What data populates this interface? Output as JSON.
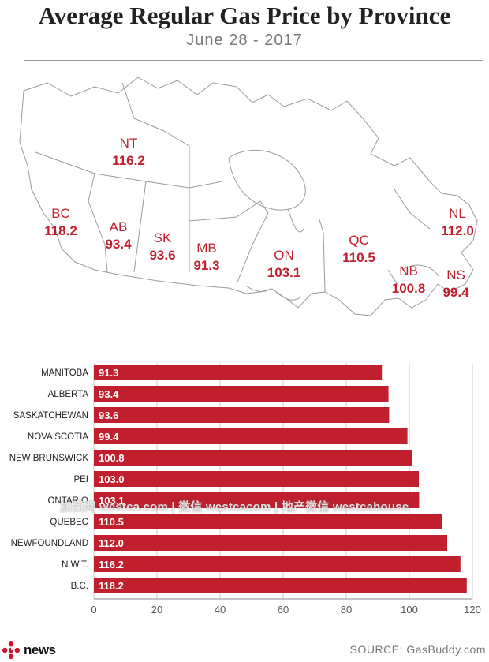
{
  "title": "Average Regular Gas Price by Province",
  "subtitle": "June 28 - 2017",
  "colors": {
    "accent": "#c0202e",
    "border": "#999999",
    "text": "#222222"
  },
  "map": {
    "labels": [
      {
        "abbr": "NT",
        "price": "116.2"
      },
      {
        "abbr": "BC",
        "price": "118.2"
      },
      {
        "abbr": "AB",
        "price": "93.4"
      },
      {
        "abbr": "SK",
        "price": "93.6"
      },
      {
        "abbr": "MB",
        "price": "91.3"
      },
      {
        "abbr": "ON",
        "price": "103.1"
      },
      {
        "abbr": "QC",
        "price": "110.5"
      },
      {
        "abbr": "NL",
        "price": "112.0"
      },
      {
        "abbr": "NB",
        "price": "100.8"
      },
      {
        "abbr": "NS",
        "price": "99.4"
      }
    ]
  },
  "chart_data": {
    "type": "bar",
    "orientation": "horizontal",
    "categories": [
      "MANITOBA",
      "ALBERTA",
      "SASKATCHEWAN",
      "NOVA SCOTIA",
      "NEW BRUNSWICK",
      "PEI",
      "ONTARIO",
      "QUEBEC",
      "NEWFOUNDLAND",
      "N.W.T.",
      "B.C."
    ],
    "values": [
      91.3,
      93.4,
      93.6,
      99.4,
      100.8,
      103.0,
      103.1,
      110.5,
      112.0,
      116.2,
      118.2
    ],
    "value_labels": [
      "91.3",
      "93.4",
      "93.6",
      "99.4",
      "100.8",
      "103.0",
      "103.1",
      "110.5",
      "112.0",
      "116.2",
      "118.2"
    ],
    "xlim": [
      0,
      120
    ],
    "xticks": [
      0,
      20,
      40,
      60,
      80,
      100,
      120
    ],
    "grid": true,
    "bar_color": "#c0202e"
  },
  "watermark": "加西网 westca.com | 微信 westcacom | 地产微信 westcahouse",
  "footer": {
    "logo_text": "news",
    "logo_icon": "cbc-gem-icon",
    "source": "SOURCE: GasBuddy.com"
  }
}
